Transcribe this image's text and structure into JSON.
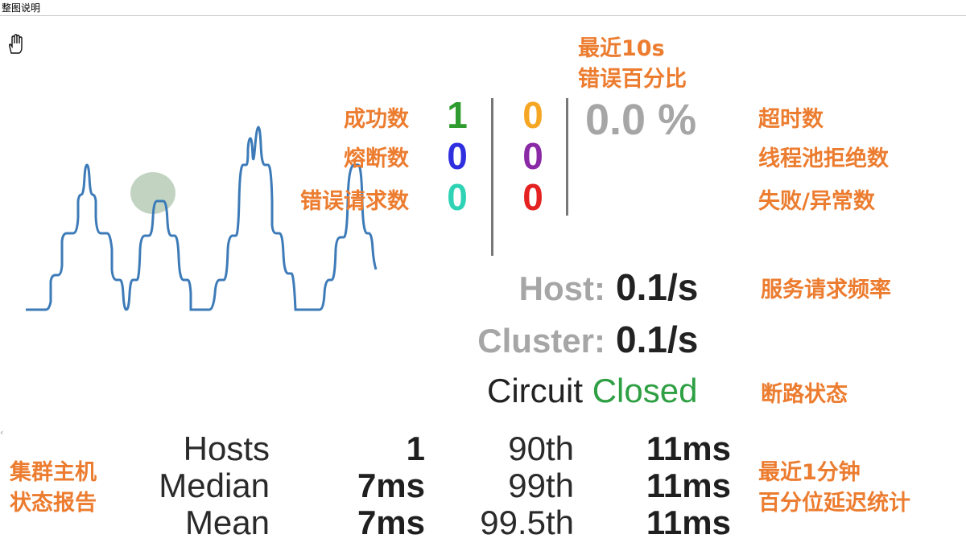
{
  "window": {
    "title": "整图说明"
  },
  "icons": {
    "hand": "hand-pointer-icon"
  },
  "annotations": {
    "error_pct_line1": "最近10s",
    "error_pct_line2": "错误百分比",
    "success": "成功数",
    "short_circuited": "熔断数",
    "bad_request": "错误请求数",
    "timeout": "超时数",
    "thread_pool_rejected": "线程池拒绝数",
    "failure": "失败/异常数",
    "request_rate": "服务请求频率",
    "circuit_status": "断路状态",
    "cluster_hosts_line1": "集群主机",
    "cluster_hosts_line2": "状态报告",
    "latency_line1": "最近1分钟",
    "latency_line2": "百分位延迟统计"
  },
  "counters": {
    "success": {
      "value": "1",
      "color": "#2d9b2d"
    },
    "timeout": {
      "value": "0",
      "color": "#f5a623"
    },
    "short_circuited": {
      "value": "0",
      "color": "#2f2fe0"
    },
    "thread_pool_rejected": {
      "value": "0",
      "color": "#8b2aa6"
    },
    "bad_request": {
      "value": "0",
      "color": "#2ed3b5"
    },
    "failure": {
      "value": "0",
      "color": "#e52222"
    }
  },
  "error_percentage": "0.0 %",
  "rates": {
    "host_label": "Host:",
    "host_value": "0.1/s",
    "cluster_label": "Cluster:",
    "cluster_value": "0.1/s"
  },
  "circuit": {
    "label": "Circuit",
    "state": "Closed",
    "state_color": "#2ea043"
  },
  "stats": {
    "hosts_label": "Hosts",
    "hosts_value": "1",
    "median_label": "Median",
    "median_value": "7ms",
    "mean_label": "Mean",
    "mean_value": "7ms",
    "p90_label": "90th",
    "p90_value": "11ms",
    "p99_label": "99th",
    "p99_value": "11ms",
    "p995_label": "99.5th",
    "p995_value": "11ms"
  },
  "colors": {
    "annotation": "#ec7c2f",
    "sparkline": "#3d7bb8",
    "health_circle": "#b7cdb6"
  }
}
